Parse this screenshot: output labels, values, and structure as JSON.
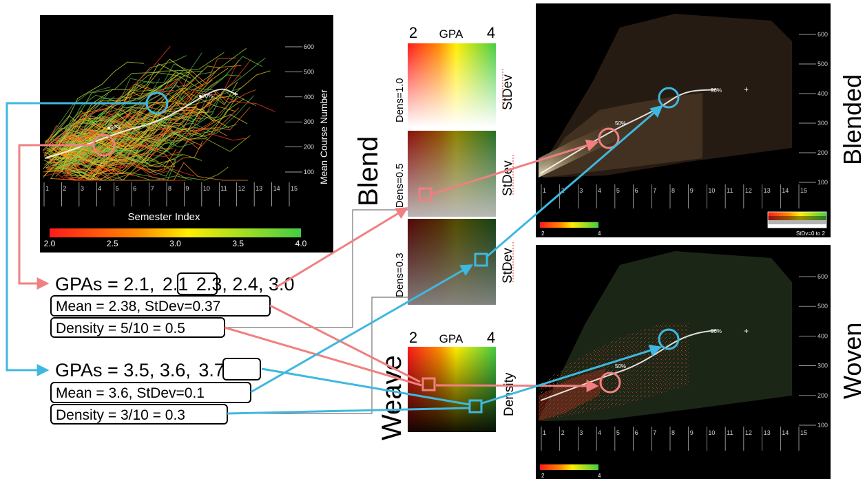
{
  "left_plot": {
    "y_axis_title": "Mean Course Number",
    "x_axis_title": "Semester Index",
    "y_ticks": [
      "100",
      "200",
      "300",
      "400",
      "500",
      "600"
    ],
    "x_ticks": [
      "1",
      "2",
      "3",
      "4",
      "5",
      "6",
      "7",
      "8",
      "9",
      "10",
      "11",
      "12",
      "13",
      "14",
      "15"
    ],
    "percentile_labels": [
      "90%",
      "50%"
    ],
    "colorbar_ticks": [
      "2.0",
      "2.5",
      "3.0",
      "3.5",
      "4.0"
    ]
  },
  "blend_label": "Blend",
  "weave_label": "Weave",
  "blend_legend": {
    "gpa_min": "2",
    "gpa_title": "GPA",
    "gpa_max": "4",
    "rows": [
      {
        "density_label": "Dens=1.0",
        "stdev_label": "StDev"
      },
      {
        "density_label": "Dens=0.5",
        "stdev_label": "StDev"
      },
      {
        "density_label": "Dens=0.3",
        "stdev_label": "StDev"
      }
    ]
  },
  "weave_legend": {
    "gpa_min": "2",
    "gpa_title": "GPA",
    "gpa_max": "4",
    "density_label": "Density"
  },
  "group_red": {
    "gpas_prefix": "GPAs = 2.1, ",
    "gpas_boxed": "2.1",
    "gpas_suffix": " 2.3, 2.4, 3.0",
    "mean_stdev": "Mean = 2.38, StDev=0.37",
    "density": "Density = 5/10 = 0.5"
  },
  "group_blue": {
    "gpas_prefix": "GPAs = 3.5, 3.6, ",
    "gpas_boxed": "3.7",
    "mean_stdev": "Mean = 3.6, StDev=0.1",
    "density": "Density = 3/10 = 0.3"
  },
  "blended_panel": {
    "side_title": "Blended",
    "y_ticks": [
      "100",
      "200",
      "300",
      "400",
      "500",
      "600"
    ],
    "x_ticks": [
      "1",
      "2",
      "3",
      "4",
      "5",
      "6",
      "7",
      "8",
      "9",
      "10",
      "11",
      "12",
      "13",
      "14",
      "15"
    ],
    "percentile_labels": [
      "90%",
      "50%"
    ],
    "gradient_min": "2",
    "gradient_max": "4",
    "stdev_legend": "StDv=0 to 2"
  },
  "woven_panel": {
    "side_title": "Woven",
    "y_ticks": [
      "100",
      "200",
      "300",
      "400",
      "500",
      "600"
    ],
    "x_ticks": [
      "1",
      "2",
      "3",
      "4",
      "5",
      "6",
      "7",
      "8",
      "9",
      "10",
      "11",
      "12",
      "13",
      "14",
      "15"
    ],
    "percentile_labels": [
      "90%",
      "50%"
    ],
    "gradient_min": "2",
    "gradient_max": "4"
  },
  "colors": {
    "red_group": "#f08080",
    "blue_group": "#3fb8df",
    "panel_bg": "#000000",
    "gpa_low": "#ff1a1a",
    "gpa_mid": "#ffee00",
    "gpa_high": "#44cc44"
  }
}
